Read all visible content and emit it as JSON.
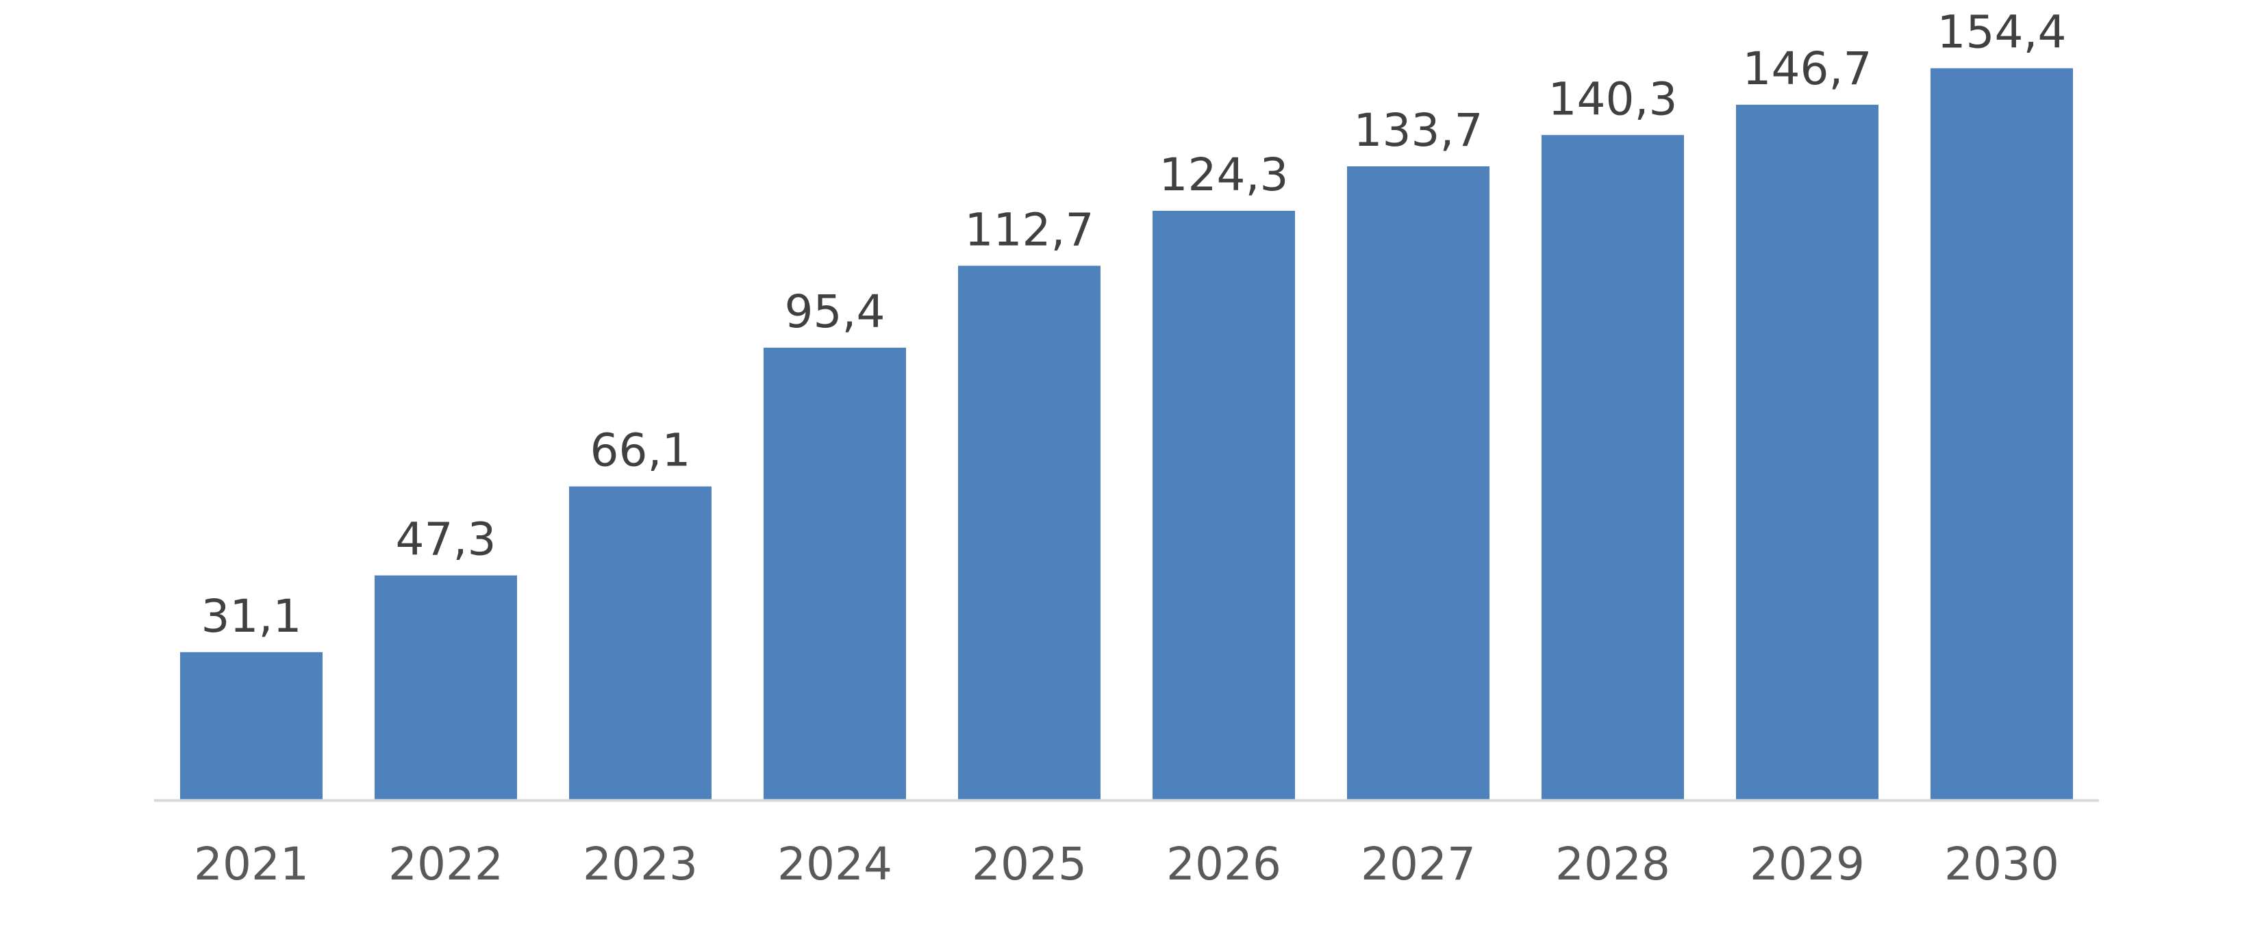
{
  "chart_data": {
    "type": "bar",
    "categories": [
      "2021",
      "2022",
      "2023",
      "2024",
      "2025",
      "2026",
      "2027",
      "2028",
      "2029",
      "2030"
    ],
    "values": [
      31.1,
      47.3,
      66.1,
      95.4,
      112.7,
      124.3,
      133.7,
      140.3,
      146.7,
      154.4
    ],
    "data_labels": [
      "31,1",
      "47,3",
      "66,1",
      "95,4",
      "112,7",
      "124,3",
      "133,7",
      "140,3",
      "146,7",
      "154,4"
    ],
    "title": "",
    "xlabel": "",
    "ylabel": "",
    "ylim": [
      0,
      160
    ],
    "grid": false,
    "legend": "none",
    "colors": {
      "bar": "#4F81BD",
      "axis": "#D9D9D9",
      "data_label": "#404040",
      "tick_label": "#595959"
    }
  }
}
